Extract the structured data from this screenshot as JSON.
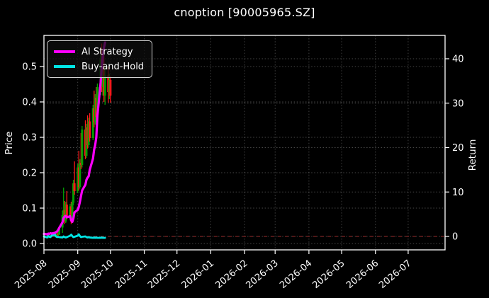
{
  "header": {
    "title": "cnoption [90005965.SZ]"
  },
  "chart_data": {
    "type": "candlestick+line",
    "title": "cnoption [90005965.SZ]",
    "background": "#000000",
    "text_color": "#ffffff",
    "grid": true,
    "legend_position": "upper left",
    "left_axis": {
      "label": "Price",
      "ticks": [
        0.0,
        0.1,
        0.2,
        0.3,
        0.4,
        0.5
      ],
      "range": [
        -0.018,
        0.588
      ]
    },
    "right_axis": {
      "label": "Return",
      "ticks": [
        0,
        10,
        20,
        30,
        40
      ],
      "range": [
        -3.0,
        45.3
      ]
    },
    "x_tick_labels": [
      "2025-08",
      "2025-09",
      "2025-10",
      "2025-11",
      "2025-12",
      "2026-01",
      "2026-02",
      "2026-03",
      "2026-04",
      "2026-05",
      "2026-06",
      "2026-07"
    ],
    "zero_return_line": {
      "value": 0,
      "color": "#9c2b2b",
      "style": "dashed"
    },
    "legend": [
      {
        "label": "AI Strategy",
        "color": "#ff00ff"
      },
      {
        "label": "Buy-and-Hold",
        "color": "#00e5e5"
      }
    ],
    "candles": {
      "colors": {
        "up": "#00a000",
        "down": "#ff1a1a"
      },
      "ohlc": [
        [
          "2025-08-01",
          0.019,
          0.023,
          0.015,
          0.021
        ],
        [
          "2025-08-04",
          0.021,
          0.024,
          0.016,
          0.017
        ],
        [
          "2025-08-05",
          0.017,
          0.022,
          0.015,
          0.02
        ],
        [
          "2025-08-06",
          0.02,
          0.023,
          0.016,
          0.018
        ],
        [
          "2025-08-07",
          0.018,
          0.024,
          0.016,
          0.022
        ],
        [
          "2025-08-08",
          0.022,
          0.026,
          0.018,
          0.02
        ],
        [
          "2025-08-11",
          0.02,
          0.028,
          0.018,
          0.026
        ],
        [
          "2025-08-12",
          0.026,
          0.03,
          0.019,
          0.021
        ],
        [
          "2025-08-13",
          0.021,
          0.03,
          0.02,
          0.028
        ],
        [
          "2025-08-14",
          0.028,
          0.034,
          0.022,
          0.025
        ],
        [
          "2025-08-15",
          0.025,
          0.048,
          0.024,
          0.045
        ],
        [
          "2025-08-18",
          0.045,
          0.092,
          0.03,
          0.08
        ],
        [
          "2025-08-19",
          0.08,
          0.158,
          0.075,
          0.095
        ],
        [
          "2025-08-20",
          0.095,
          0.12,
          0.055,
          0.062
        ],
        [
          "2025-08-21",
          0.062,
          0.118,
          0.058,
          0.11
        ],
        [
          "2025-08-22",
          0.11,
          0.148,
          0.068,
          0.075
        ],
        [
          "2025-08-25",
          0.075,
          0.112,
          0.065,
          0.105
        ],
        [
          "2025-08-26",
          0.105,
          0.118,
          0.055,
          0.062
        ],
        [
          "2025-08-27",
          0.062,
          0.122,
          0.058,
          0.115
        ],
        [
          "2025-08-28",
          0.115,
          0.18,
          0.108,
          0.17
        ],
        [
          "2025-08-29",
          0.17,
          0.232,
          0.138,
          0.148
        ],
        [
          "2025-09-01",
          0.148,
          0.225,
          0.142,
          0.215
        ],
        [
          "2025-09-02",
          0.215,
          0.262,
          0.15,
          0.16
        ],
        [
          "2025-09-03",
          0.16,
          0.238,
          0.155,
          0.228
        ],
        [
          "2025-09-04",
          0.228,
          0.312,
          0.21,
          0.222
        ],
        [
          "2025-09-05",
          0.222,
          0.332,
          0.215,
          0.322
        ],
        [
          "2025-09-08",
          0.322,
          0.348,
          0.238,
          0.248
        ],
        [
          "2025-09-09",
          0.248,
          0.338,
          0.242,
          0.328
        ],
        [
          "2025-09-10",
          0.328,
          0.362,
          0.268,
          0.278
        ],
        [
          "2025-09-11",
          0.278,
          0.355,
          0.272,
          0.345
        ],
        [
          "2025-09-12",
          0.345,
          0.368,
          0.288,
          0.298
        ],
        [
          "2025-09-15",
          0.298,
          0.392,
          0.292,
          0.382
        ],
        [
          "2025-09-16",
          0.382,
          0.432,
          0.328,
          0.342
        ],
        [
          "2025-09-17",
          0.342,
          0.422,
          0.336,
          0.412
        ],
        [
          "2025-09-18",
          0.412,
          0.442,
          0.348,
          0.358
        ],
        [
          "2025-09-19",
          0.358,
          0.452,
          0.352,
          0.442
        ],
        [
          "2025-09-22",
          0.442,
          0.532,
          0.42,
          0.52
        ],
        [
          "2025-09-23",
          0.52,
          0.565,
          0.428,
          0.442
        ],
        [
          "2025-09-24",
          0.442,
          0.52,
          0.418,
          0.5
        ],
        [
          "2025-09-25",
          0.5,
          0.532,
          0.4,
          0.418
        ],
        [
          "2025-09-26",
          0.418,
          0.502,
          0.392,
          0.475
        ],
        [
          "2025-09-29",
          0.475,
          0.5,
          0.398,
          0.428
        ],
        [
          "2025-09-30",
          0.428,
          0.48,
          0.408,
          0.462
        ],
        [
          "2025-10-01",
          0.462,
          0.472,
          0.398,
          0.418
        ]
      ]
    },
    "series": [
      {
        "name": "AI Strategy",
        "color": "#ff00ff",
        "axis": "left",
        "width": 3.2,
        "points": [
          [
            "2025-08-01",
            0.027
          ],
          [
            "2025-08-04",
            0.026
          ],
          [
            "2025-08-05",
            0.028
          ],
          [
            "2025-08-06",
            0.027
          ],
          [
            "2025-08-07",
            0.029
          ],
          [
            "2025-08-08",
            0.028
          ],
          [
            "2025-08-11",
            0.03
          ],
          [
            "2025-08-12",
            0.032
          ],
          [
            "2025-08-13",
            0.034
          ],
          [
            "2025-08-14",
            0.038
          ],
          [
            "2025-08-15",
            0.044
          ],
          [
            "2025-08-18",
            0.06
          ],
          [
            "2025-08-19",
            0.072
          ],
          [
            "2025-08-20",
            0.076
          ],
          [
            "2025-08-21",
            0.078
          ],
          [
            "2025-08-22",
            0.074
          ],
          [
            "2025-08-25",
            0.077
          ],
          [
            "2025-08-26",
            0.066
          ],
          [
            "2025-08-27",
            0.061
          ],
          [
            "2025-08-28",
            0.07
          ],
          [
            "2025-08-29",
            0.088
          ],
          [
            "2025-09-01",
            0.095
          ],
          [
            "2025-09-02",
            0.104
          ],
          [
            "2025-09-03",
            0.118
          ],
          [
            "2025-09-04",
            0.134
          ],
          [
            "2025-09-05",
            0.15
          ],
          [
            "2025-09-08",
            0.166
          ],
          [
            "2025-09-09",
            0.18
          ],
          [
            "2025-09-10",
            0.186
          ],
          [
            "2025-09-11",
            0.19
          ],
          [
            "2025-09-12",
            0.208
          ],
          [
            "2025-09-15",
            0.24
          ],
          [
            "2025-09-16",
            0.265
          ],
          [
            "2025-09-17",
            0.278
          ],
          [
            "2025-09-18",
            0.3
          ],
          [
            "2025-09-19",
            0.36
          ],
          [
            "2025-09-22",
            0.455
          ],
          [
            "2025-09-23",
            0.5
          ],
          [
            "2025-09-24",
            0.53
          ],
          [
            "2025-09-25",
            0.552
          ],
          [
            "2025-09-26",
            0.568
          ]
        ]
      },
      {
        "name": "Buy-and-Hold",
        "color": "#00e5e5",
        "axis": "left",
        "width": 2.8,
        "points": [
          [
            "2025-08-01",
            0.02
          ],
          [
            "2025-08-04",
            0.017
          ],
          [
            "2025-08-05",
            0.021
          ],
          [
            "2025-08-06",
            0.019
          ],
          [
            "2025-08-07",
            0.018
          ],
          [
            "2025-08-08",
            0.022
          ],
          [
            "2025-08-11",
            0.025
          ],
          [
            "2025-08-12",
            0.02
          ],
          [
            "2025-08-13",
            0.018
          ],
          [
            "2025-08-14",
            0.019
          ],
          [
            "2025-08-15",
            0.018
          ],
          [
            "2025-08-18",
            0.017
          ],
          [
            "2025-08-19",
            0.02
          ],
          [
            "2025-08-20",
            0.018
          ],
          [
            "2025-08-21",
            0.017
          ],
          [
            "2025-08-22",
            0.018
          ],
          [
            "2025-08-25",
            0.022
          ],
          [
            "2025-08-26",
            0.025
          ],
          [
            "2025-08-27",
            0.021
          ],
          [
            "2025-08-28",
            0.018
          ],
          [
            "2025-08-29",
            0.019
          ],
          [
            "2025-09-01",
            0.022
          ],
          [
            "2025-09-02",
            0.026
          ],
          [
            "2025-09-03",
            0.021
          ],
          [
            "2025-09-04",
            0.018
          ],
          [
            "2025-09-05",
            0.019
          ],
          [
            "2025-09-08",
            0.02
          ],
          [
            "2025-09-09",
            0.018
          ],
          [
            "2025-09-10",
            0.017
          ],
          [
            "2025-09-11",
            0.018
          ],
          [
            "2025-09-12",
            0.017
          ],
          [
            "2025-09-15",
            0.016
          ],
          [
            "2025-09-16",
            0.017
          ],
          [
            "2025-09-17",
            0.016
          ],
          [
            "2025-09-18",
            0.017
          ],
          [
            "2025-09-19",
            0.016
          ],
          [
            "2025-09-22",
            0.016
          ],
          [
            "2025-09-23",
            0.017
          ],
          [
            "2025-09-24",
            0.016
          ],
          [
            "2025-09-25",
            0.016
          ],
          [
            "2025-09-26",
            0.016
          ]
        ]
      }
    ]
  }
}
